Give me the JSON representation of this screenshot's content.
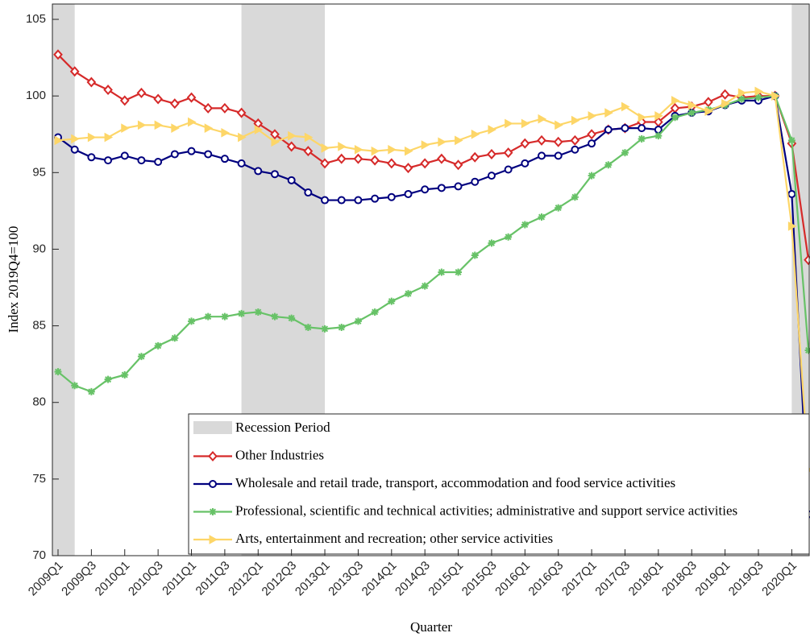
{
  "chart_data": {
    "type": "line",
    "x_label": "Quarter",
    "y_label": "Index 2019Q4=100",
    "categories": [
      "2009Q1",
      null,
      "2009Q3",
      null,
      "2010Q1",
      null,
      "2010Q3",
      null,
      "2011Q1",
      null,
      "2011Q3",
      null,
      "2012Q1",
      null,
      "2012Q3",
      null,
      "2013Q1",
      null,
      "2013Q3",
      null,
      "2014Q1",
      null,
      "2014Q3",
      null,
      "2015Q1",
      null,
      "2015Q3",
      null,
      "2016Q1",
      null,
      "2016Q3",
      null,
      "2017Q1",
      null,
      "2017Q3",
      null,
      "2018Q1",
      null,
      "2018Q3",
      null,
      "2019Q1",
      null,
      "2019Q3",
      null,
      "2020Q1",
      null
    ],
    "ylim": [
      70,
      106
    ],
    "yticks": [
      70,
      75,
      80,
      85,
      90,
      95,
      100,
      105
    ],
    "recession": {
      "name": "Recession Period",
      "color": "#d9d9d9",
      "periods": [
        [
          -1,
          1
        ],
        [
          11,
          16
        ],
        [
          44,
          45
        ]
      ]
    },
    "series": [
      {
        "name": "Other Industries",
        "color": "#d62a2a",
        "marker": "diamond",
        "values": [
          102.7,
          101.6,
          100.9,
          100.4,
          99.7,
          100.2,
          99.8,
          99.5,
          99.9,
          99.2,
          99.2,
          98.9,
          98.2,
          97.5,
          96.7,
          96.4,
          95.6,
          95.9,
          95.9,
          95.8,
          95.6,
          95.3,
          95.6,
          95.9,
          95.5,
          96.0,
          96.2,
          96.3,
          96.9,
          97.1,
          97.0,
          97.1,
          97.5,
          97.8,
          97.9,
          98.3,
          98.3,
          99.2,
          99.3,
          99.6,
          100.1,
          99.9,
          100.0,
          100,
          96.9,
          89.3
        ]
      },
      {
        "name": "Wholesale and retail trade, transport, accommodation and food service activities",
        "color": "#00007f",
        "marker": "circle",
        "values": [
          97.3,
          96.5,
          96.0,
          95.8,
          96.1,
          95.8,
          95.7,
          96.2,
          96.4,
          96.2,
          95.9,
          95.6,
          95.1,
          94.9,
          94.5,
          93.7,
          93.2,
          93.2,
          93.2,
          93.3,
          93.4,
          93.6,
          93.9,
          94.0,
          94.1,
          94.4,
          94.8,
          95.2,
          95.6,
          96.1,
          96.1,
          96.5,
          96.9,
          97.8,
          97.9,
          97.9,
          97.8,
          98.7,
          98.9,
          99.0,
          99.4,
          99.7,
          99.7,
          100,
          93.6,
          72.7
        ]
      },
      {
        "name": "Professional, scientific and technical activities; administrative and support service activities",
        "color": "#67c267",
        "marker": "asterisk",
        "values": [
          82.0,
          81.1,
          80.7,
          81.5,
          81.8,
          83.0,
          83.7,
          84.2,
          85.3,
          85.6,
          85.6,
          85.8,
          85.9,
          85.6,
          85.5,
          84.9,
          84.8,
          84.9,
          85.3,
          85.9,
          86.6,
          87.1,
          87.6,
          88.5,
          88.5,
          89.6,
          90.4,
          90.8,
          91.6,
          92.1,
          92.7,
          93.4,
          94.8,
          95.5,
          96.3,
          97.2,
          97.4,
          98.6,
          98.9,
          99.1,
          99.4,
          99.8,
          99.9,
          100,
          97.1,
          83.4
        ]
      },
      {
        "name": "Arts, entertainment and recreation; other service activities",
        "color": "#fdd668",
        "marker": "triangle",
        "values": [
          97.1,
          97.2,
          97.3,
          97.3,
          97.9,
          98.1,
          98.1,
          97.9,
          98.3,
          97.9,
          97.6,
          97.3,
          97.8,
          97.0,
          97.4,
          97.3,
          96.6,
          96.7,
          96.5,
          96.4,
          96.5,
          96.4,
          96.8,
          97.0,
          97.1,
          97.5,
          97.8,
          98.2,
          98.2,
          98.5,
          98.1,
          98.4,
          98.7,
          98.9,
          99.3,
          98.6,
          98.7,
          99.7,
          99.4,
          99.0,
          99.5,
          100.2,
          100.3,
          100,
          91.5,
          75.6
        ]
      }
    ]
  }
}
